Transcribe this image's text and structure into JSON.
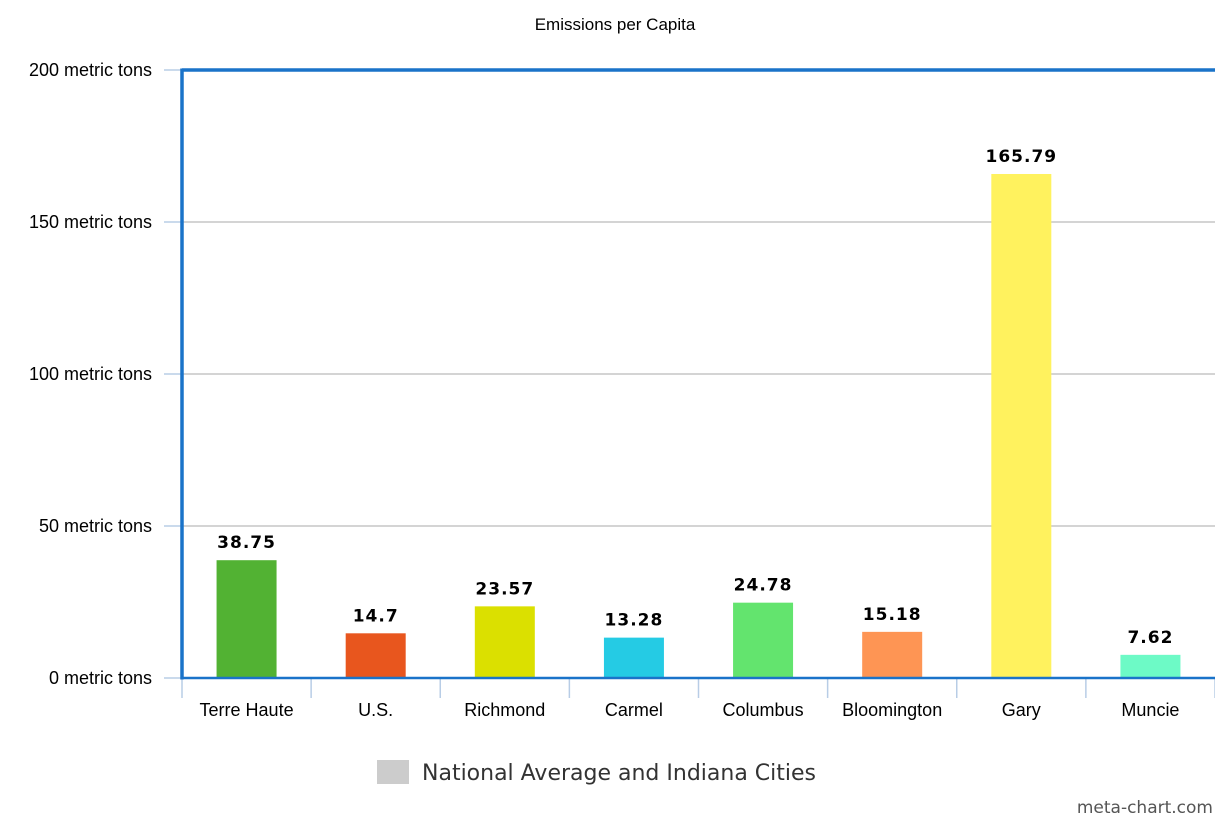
{
  "chart_data": {
    "type": "bar",
    "title": "Emissions per Capita",
    "categories": [
      "Terre Haute",
      "U.S.",
      "Richmond",
      "Carmel",
      "Columbus",
      "Bloomington",
      "Gary",
      "Muncie"
    ],
    "values": [
      38.75,
      14.7,
      23.57,
      13.28,
      24.78,
      15.18,
      165.79,
      7.62
    ],
    "value_labels": [
      "38.75",
      "14.7",
      "23.57",
      "13.28",
      "24.78",
      "15.18",
      "165.79",
      "7.62"
    ],
    "colors": [
      "#52b233",
      "#e8561e",
      "#dbe000",
      "#25cbe4",
      "#63e46e",
      "#fe9554",
      "#fff25e",
      "#6dfac6"
    ],
    "ylim": [
      0,
      200
    ],
    "y_ticks": [
      0,
      50,
      100,
      150,
      200
    ],
    "y_tick_labels": [
      "0 metric tons",
      "50 metric tons",
      "100 metric tons",
      "150 metric tons",
      "200 metric tons"
    ],
    "grid": true,
    "legend": {
      "label": "National Average and Indiana Cities",
      "color": "#cccccc",
      "placement": "bottom"
    }
  },
  "watermark": "meta-chart.com",
  "colors": {
    "axis": "#1a73c9",
    "grid": "#bbbbbb",
    "tick": "#b8cde6"
  }
}
